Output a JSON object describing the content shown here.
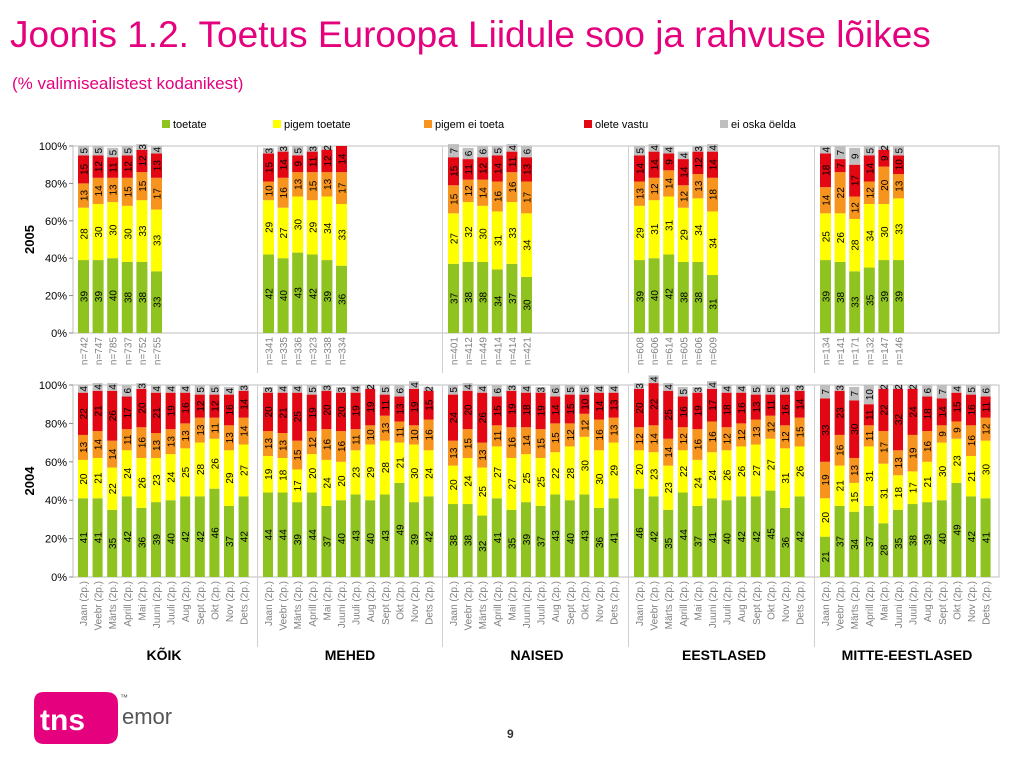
{
  "title": "Joonis 1.2. Toetus Euroopa Liidule soo ja rahvuse lõikes",
  "subtitle": "(% valimisealistest kodanikest)",
  "page_number": "9",
  "logo": {
    "text": "tns",
    "suffix": "emor",
    "trademark": "™",
    "icon": "tns-emor-logo-icon"
  },
  "colors": {
    "toetate": "#8fc31f",
    "pigem toetate": "#ffff00",
    "pigem ei toeta": "#f7941d",
    "olete vastu": "#e30613",
    "ei oska öelda": "#bfbfbf",
    "brand": "#e5007d"
  },
  "chart_data": {
    "type": "stacked-bar",
    "stack_order": [
      "toetate",
      "pigem toetate",
      "pigem ei toeta",
      "olete vastu",
      "ei oska öelda"
    ],
    "legend": {
      "position": "top",
      "entries": [
        "toetate",
        "pigem toetate",
        "pigem ei toeta",
        "olete vastu",
        "ei oska öelda"
      ]
    },
    "ylim": [
      0,
      100
    ],
    "y_ticks": [
      "0%",
      "20%",
      "40%",
      "60%",
      "80%",
      "100%"
    ],
    "groups": [
      "KÕIK",
      "MEHED",
      "NAISED",
      "EESTLASED",
      "MITTE-EESTLASED"
    ],
    "panels": [
      {
        "label": "2005",
        "slots": 6,
        "groups": [
          {
            "categories": [
              "n=742",
              "n=747",
              "n=785",
              "n=737",
              "n=752",
              "n=755"
            ],
            "data": [
              [
                39,
                28,
                13,
                15,
                5
              ],
              [
                39,
                30,
                14,
                12,
                5
              ],
              [
                40,
                30,
                13,
                11,
                5
              ],
              [
                38,
                30,
                15,
                12,
                5
              ],
              [
                38,
                33,
                15,
                12,
                3
              ],
              [
                33,
                33,
                17,
                13,
                4
              ]
            ]
          },
          {
            "categories": [
              "n=341",
              "n=335",
              "n=336",
              "n=323",
              "n=338",
              "n=334"
            ],
            "data": [
              [
                42,
                29,
                10,
                15,
                3
              ],
              [
                40,
                27,
                16,
                14,
                3
              ],
              [
                43,
                30,
                13,
                9,
                5
              ],
              [
                42,
                29,
                15,
                11,
                3
              ],
              [
                39,
                34,
                13,
                12,
                2
              ],
              [
                36,
                33,
                17,
                14,
                0
              ]
            ]
          },
          {
            "categories": [
              "n=401",
              "n=412",
              "n=449",
              "n=414",
              "n=414",
              "n=421"
            ],
            "data": [
              [
                37,
                27,
                15,
                15,
                7
              ],
              [
                38,
                32,
                12,
                11,
                6
              ],
              [
                38,
                30,
                14,
                12,
                6
              ],
              [
                34,
                31,
                16,
                14,
                5
              ],
              [
                37,
                33,
                16,
                11,
                4
              ],
              [
                30,
                34,
                17,
                13,
                6
              ]
            ]
          },
          {
            "categories": [
              "n=608",
              "n=606",
              "n=614",
              "n=605",
              "n=606",
              "n=609"
            ],
            "data": [
              [
                39,
                29,
                13,
                14,
                5
              ],
              [
                40,
                31,
                12,
                14,
                4
              ],
              [
                42,
                31,
                14,
                9,
                4
              ],
              [
                38,
                29,
                12,
                14,
                4
              ],
              [
                38,
                34,
                13,
                12,
                3
              ],
              [
                31,
                34,
                18,
                14,
                4
              ]
            ]
          },
          {
            "categories": [
              "n=134",
              "n=141",
              "n=171",
              "n=132",
              "n=147",
              "n=146"
            ],
            "data": [
              [
                39,
                25,
                14,
                18,
                4
              ],
              [
                38,
                26,
                22,
                7,
                7
              ],
              [
                33,
                28,
                12,
                17,
                9
              ],
              [
                35,
                34,
                12,
                14,
                5
              ],
              [
                39,
                30,
                20,
                9,
                2
              ],
              [
                39,
                33,
                13,
                10,
                5
              ]
            ]
          }
        ]
      },
      {
        "label": "2004",
        "slots": 12,
        "groups": [
          {
            "categories": [
              "Jaan (2p.)",
              "Veebr (2p.)",
              "Märts (2p.)",
              "Aprill (2p.)",
              "Mai (2p.)",
              "Juuni (2p.)",
              "Juuli (2p.)",
              "Aug (2p.)",
              "Sept (2p.)",
              "Okt (2p.)",
              "Nov (2p.)",
              "Dets (2p.)"
            ],
            "data": [
              [
                41,
                20,
                13,
                22,
                4
              ],
              [
                41,
                21,
                14,
                21,
                4
              ],
              [
                35,
                22,
                14,
                26,
                4
              ],
              [
                42,
                24,
                11,
                17,
                6
              ],
              [
                36,
                26,
                16,
                20,
                3
              ],
              [
                39,
                23,
                13,
                21,
                4
              ],
              [
                40,
                24,
                13,
                19,
                4
              ],
              [
                42,
                25,
                13,
                16,
                4
              ],
              [
                42,
                28,
                13,
                12,
                5
              ],
              [
                46,
                26,
                11,
                12,
                5
              ],
              [
                37,
                29,
                13,
                16,
                4
              ],
              [
                42,
                27,
                14,
                14,
                3
              ]
            ]
          },
          {
            "categories": [
              "Jaan (2p.)",
              "Veebr (2p.)",
              "Märts (2p.)",
              "Aprill (2p.)",
              "Mai (2p.)",
              "Juuni (2p.)",
              "Juuli (2p.)",
              "Aug (2p.)",
              "Sept (2p.)",
              "Okt (2p.)",
              "Nov (2p.)",
              "Dets (2p.)"
            ],
            "data": [
              [
                44,
                19,
                13,
                20,
                3
              ],
              [
                44,
                18,
                13,
                21,
                4
              ],
              [
                39,
                17,
                15,
                25,
                4
              ],
              [
                44,
                20,
                12,
                19,
                5
              ],
              [
                37,
                24,
                16,
                20,
                3
              ],
              [
                40,
                20,
                16,
                20,
                3
              ],
              [
                43,
                23,
                11,
                19,
                4
              ],
              [
                40,
                29,
                10,
                19,
                2
              ],
              [
                43,
                28,
                13,
                11,
                5
              ],
              [
                49,
                21,
                11,
                13,
                6
              ],
              [
                39,
                30,
                10,
                19,
                4
              ],
              [
                42,
                24,
                16,
                15,
                2
              ]
            ]
          },
          {
            "categories": [
              "Jaan (2p.)",
              "Veebr (2p.)",
              "Märts (2p.)",
              "Aprill (2p.)",
              "Mai (2p.)",
              "Juuni (2p.)",
              "Juuli (2p.)",
              "Aug (2p.)",
              "Sept (2p.)",
              "Okt (2p.)",
              "Nov (2p.)",
              "Dets (2p.)"
            ],
            "data": [
              [
                38,
                20,
                13,
                24,
                5
              ],
              [
                38,
                24,
                15,
                20,
                4
              ],
              [
                32,
                25,
                13,
                26,
                4
              ],
              [
                41,
                27,
                11,
                15,
                6
              ],
              [
                35,
                27,
                16,
                19,
                3
              ],
              [
                39,
                25,
                14,
                18,
                4
              ],
              [
                37,
                25,
                15,
                19,
                3
              ],
              [
                43,
                22,
                15,
                14,
                6
              ],
              [
                40,
                28,
                12,
                15,
                5
              ],
              [
                43,
                30,
                12,
                10,
                5
              ],
              [
                36,
                30,
                16,
                14,
                4
              ],
              [
                41,
                29,
                13,
                13,
                4
              ]
            ]
          },
          {
            "categories": [
              "Jaan (2p.)",
              "Veebr (2p.)",
              "Märts (2p.)",
              "Aprill (2p.)",
              "Mai (2p.)",
              "Juuni (2p.)",
              "Juuli (2p.)",
              "Aug (2p.)",
              "Sept (2p.)",
              "Okt (2p.)",
              "Nov (2p.)",
              "Dets (2p.)"
            ],
            "data": [
              [
                46,
                20,
                12,
                20,
                3
              ],
              [
                42,
                23,
                14,
                22,
                4
              ],
              [
                35,
                23,
                14,
                25,
                4
              ],
              [
                44,
                22,
                12,
                16,
                5
              ],
              [
                37,
                24,
                16,
                19,
                3
              ],
              [
                41,
                24,
                16,
                17,
                4
              ],
              [
                40,
                26,
                12,
                18,
                4
              ],
              [
                42,
                26,
                12,
                16,
                4
              ],
              [
                42,
                27,
                13,
                13,
                5
              ],
              [
                45,
                27,
                12,
                11,
                5
              ],
              [
                36,
                31,
                12,
                16,
                5
              ],
              [
                42,
                26,
                15,
                14,
                3
              ]
            ]
          },
          {
            "categories": [
              "Jaan (2p.)",
              "Veebr (2p.)",
              "Märts (2p.)",
              "Aprill (2p.)",
              "Mai (2p.)",
              "Juuni (2p.)",
              "Juuli (2p.)",
              "Aug (2p.)",
              "Sept (2p.)",
              "Okt (2p.)",
              "Nov (2p.)",
              "Dets (2p.)"
            ],
            "data": [
              [
                21,
                20,
                19,
                33,
                7
              ],
              [
                37,
                21,
                16,
                23,
                3
              ],
              [
                34,
                15,
                13,
                30,
                7
              ],
              [
                37,
                31,
                11,
                11,
                10
              ],
              [
                28,
                31,
                17,
                22,
                2
              ],
              [
                35,
                18,
                13,
                32,
                2
              ],
              [
                38,
                17,
                19,
                24,
                2
              ],
              [
                39,
                21,
                16,
                18,
                6
              ],
              [
                40,
                30,
                9,
                14,
                7
              ],
              [
                49,
                23,
                9,
                15,
                4
              ],
              [
                42,
                21,
                16,
                16,
                5
              ],
              [
                41,
                30,
                12,
                11,
                6
              ]
            ]
          }
        ]
      }
    ]
  }
}
